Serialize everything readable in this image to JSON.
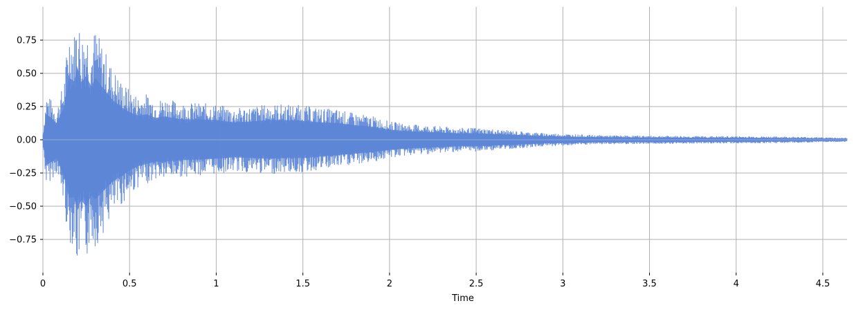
{
  "chart_data": {
    "type": "area",
    "title": "",
    "xlabel": "Time",
    "ylabel": "",
    "xlim": [
      0,
      4.64
    ],
    "ylim": [
      -1.0,
      1.0
    ],
    "x_ticks": [
      0,
      0.5,
      1,
      1.5,
      2,
      2.5,
      3,
      3.5,
      4,
      4.5
    ],
    "x_tick_labels": [
      "0",
      "0.5",
      "1",
      "1.5",
      "2",
      "2.5",
      "3",
      "3.5",
      "4",
      "4.5"
    ],
    "y_ticks": [
      0.75,
      0.5,
      0.25,
      0.0,
      -0.25,
      -0.5,
      -0.75
    ],
    "y_tick_labels": [
      "0.75",
      "0.50",
      "0.25",
      "0.00",
      "−0.25",
      "−0.50",
      "−0.75"
    ],
    "grid": true,
    "series": [
      {
        "color": "#5b84d6",
        "envelope": {
          "x": [
            0,
            0.02,
            0.05,
            0.08,
            0.1,
            0.12,
            0.15,
            0.18,
            0.2,
            0.22,
            0.25,
            0.28,
            0.3,
            0.35,
            0.4,
            0.45,
            0.5,
            0.55,
            0.6,
            0.65,
            0.7,
            0.8,
            0.9,
            1.0,
            1.1,
            1.2,
            1.3,
            1.4,
            1.5,
            1.6,
            1.7,
            1.8,
            1.9,
            2.0,
            2.1,
            2.2,
            2.3,
            2.4,
            2.5,
            2.6,
            2.7,
            2.8,
            2.9,
            3.0,
            3.1,
            3.2,
            3.4,
            3.6,
            3.8,
            4.0,
            4.2,
            4.4,
            4.64
          ],
          "upper": [
            0.05,
            0.35,
            0.3,
            0.22,
            0.35,
            0.42,
            0.85,
            0.8,
            0.99,
            0.78,
            0.88,
            0.72,
            0.85,
            0.7,
            0.55,
            0.45,
            0.38,
            0.33,
            0.35,
            0.3,
            0.32,
            0.28,
            0.28,
            0.27,
            0.24,
            0.25,
            0.27,
            0.27,
            0.26,
            0.24,
            0.23,
            0.2,
            0.18,
            0.14,
            0.12,
            0.11,
            0.1,
            0.09,
            0.09,
            0.08,
            0.07,
            0.06,
            0.05,
            0.045,
            0.04,
            0.035,
            0.032,
            0.03,
            0.028,
            0.027,
            0.025,
            0.022,
            0.015
          ],
          "lower": [
            -0.05,
            -0.35,
            -0.3,
            -0.25,
            -0.38,
            -0.48,
            -0.8,
            -0.78,
            -0.98,
            -0.82,
            -0.92,
            -0.75,
            -0.82,
            -0.7,
            -0.58,
            -0.5,
            -0.42,
            -0.36,
            -0.33,
            -0.3,
            -0.3,
            -0.28,
            -0.27,
            -0.26,
            -0.24,
            -0.25,
            -0.26,
            -0.25,
            -0.25,
            -0.23,
            -0.21,
            -0.19,
            -0.17,
            -0.14,
            -0.12,
            -0.11,
            -0.1,
            -0.09,
            -0.09,
            -0.08,
            -0.07,
            -0.06,
            -0.05,
            -0.045,
            -0.04,
            -0.035,
            -0.032,
            -0.03,
            -0.028,
            -0.027,
            -0.025,
            -0.022,
            -0.015
          ]
        }
      }
    ]
  }
}
